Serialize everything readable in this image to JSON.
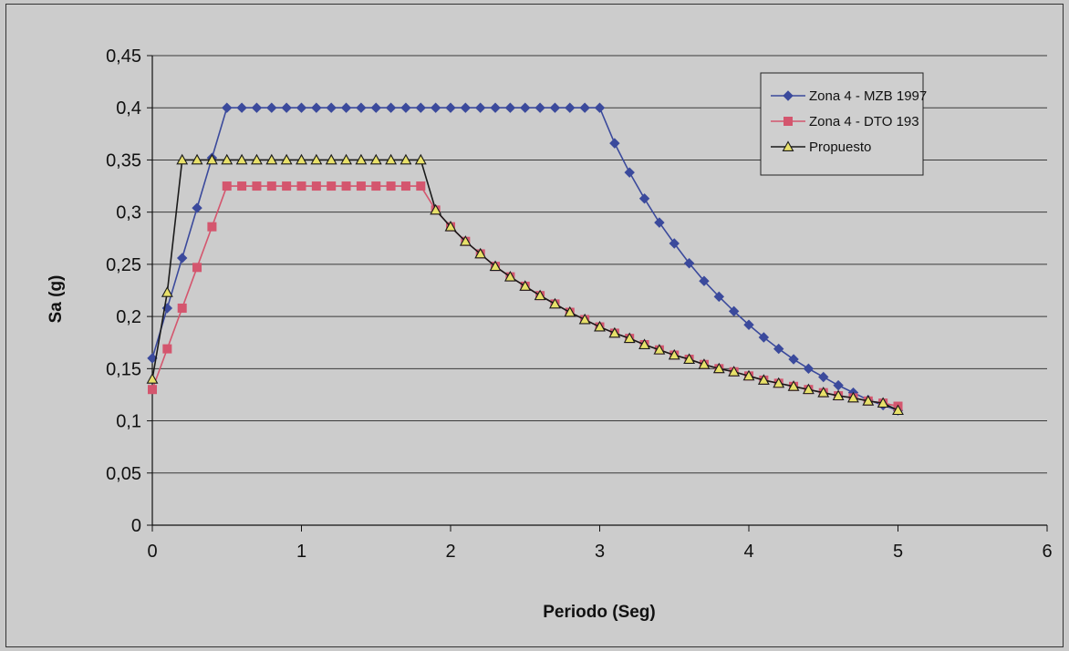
{
  "chart_data": {
    "type": "line",
    "title": "",
    "xlabel": "Periodo (Seg)",
    "ylabel": "Sa (g)",
    "xlim": [
      0,
      6
    ],
    "ylim": [
      0,
      0.45
    ],
    "xticks": [
      0,
      1,
      2,
      3,
      4,
      5,
      6
    ],
    "xtick_labels": [
      "0",
      "1",
      "2",
      "3",
      "4",
      "5",
      "6"
    ],
    "yticks": [
      0,
      0.05,
      0.1,
      0.15,
      0.2,
      0.25,
      0.3,
      0.35,
      0.4,
      0.45
    ],
    "ytick_labels": [
      "0",
      "0,05",
      "0,1",
      "0,15",
      "0,2",
      "0,25",
      "0,3",
      "0,35",
      "0,4",
      "0,45"
    ],
    "grid": "horizontal",
    "legend_position": "top-right",
    "series": [
      {
        "name": "Zona 4 - MZB 1997",
        "color": "#3b4a9c",
        "marker": "diamond",
        "x": [
          0,
          0.1,
          0.2,
          0.3,
          0.4,
          0.5,
          0.6,
          0.7,
          0.8,
          0.9,
          1.0,
          1.1,
          1.2,
          1.3,
          1.4,
          1.5,
          1.6,
          1.7,
          1.8,
          1.9,
          2.0,
          2.1,
          2.2,
          2.3,
          2.4,
          2.5,
          2.6,
          2.7,
          2.8,
          2.9,
          3.0,
          3.1,
          3.2,
          3.3,
          3.4,
          3.5,
          3.6,
          3.7,
          3.8,
          3.9,
          4.0,
          4.1,
          4.2,
          4.3,
          4.4,
          4.5,
          4.6,
          4.7,
          4.8,
          4.9,
          5.0
        ],
        "y": [
          0.16,
          0.208,
          0.256,
          0.304,
          0.352,
          0.4,
          0.4,
          0.4,
          0.4,
          0.4,
          0.4,
          0.4,
          0.4,
          0.4,
          0.4,
          0.4,
          0.4,
          0.4,
          0.4,
          0.4,
          0.4,
          0.4,
          0.4,
          0.4,
          0.4,
          0.4,
          0.4,
          0.4,
          0.4,
          0.4,
          0.4,
          0.366,
          0.338,
          0.313,
          0.29,
          0.27,
          0.251,
          0.234,
          0.219,
          0.205,
          0.192,
          0.18,
          0.169,
          0.159,
          0.15,
          0.142,
          0.134,
          0.127,
          0.12,
          0.115,
          0.11
        ]
      },
      {
        "name": "Zona 4 - DTO 193",
        "color": "#d4566e",
        "marker": "square",
        "x": [
          0,
          0.1,
          0.2,
          0.3,
          0.4,
          0.5,
          0.6,
          0.7,
          0.8,
          0.9,
          1.0,
          1.1,
          1.2,
          1.3,
          1.4,
          1.5,
          1.6,
          1.7,
          1.8,
          1.9,
          2.0,
          2.1,
          2.2,
          2.3,
          2.4,
          2.5,
          2.6,
          2.7,
          2.8,
          2.9,
          3.0,
          3.1,
          3.2,
          3.3,
          3.4,
          3.5,
          3.6,
          3.7,
          3.8,
          3.9,
          4.0,
          4.1,
          4.2,
          4.3,
          4.4,
          4.5,
          4.6,
          4.7,
          4.8,
          4.9,
          5.0
        ],
        "y": [
          0.13,
          0.169,
          0.208,
          0.247,
          0.286,
          0.325,
          0.325,
          0.325,
          0.325,
          0.325,
          0.325,
          0.325,
          0.325,
          0.325,
          0.325,
          0.325,
          0.325,
          0.325,
          0.325,
          0.302,
          0.286,
          0.272,
          0.26,
          0.248,
          0.238,
          0.229,
          0.22,
          0.212,
          0.204,
          0.197,
          0.19,
          0.184,
          0.179,
          0.173,
          0.168,
          0.163,
          0.159,
          0.154,
          0.15,
          0.147,
          0.143,
          0.139,
          0.136,
          0.133,
          0.13,
          0.127,
          0.124,
          0.122,
          0.119,
          0.117,
          0.114
        ]
      },
      {
        "name": "Propuesto",
        "color": "#1a1a1a",
        "marker": "triangle",
        "marker_fill": "#e8e06a",
        "x": [
          0,
          0.1,
          0.2,
          0.3,
          0.4,
          0.5,
          0.6,
          0.7,
          0.8,
          0.9,
          1.0,
          1.1,
          1.2,
          1.3,
          1.4,
          1.5,
          1.6,
          1.7,
          1.8,
          1.9,
          2.0,
          2.1,
          2.2,
          2.3,
          2.4,
          2.5,
          2.6,
          2.7,
          2.8,
          2.9,
          3.0,
          3.1,
          3.2,
          3.3,
          3.4,
          3.5,
          3.6,
          3.7,
          3.8,
          3.9,
          4.0,
          4.1,
          4.2,
          4.3,
          4.4,
          4.5,
          4.6,
          4.7,
          4.8,
          4.9,
          5.0
        ],
        "y": [
          0.14,
          0.223,
          0.35,
          0.35,
          0.35,
          0.35,
          0.35,
          0.35,
          0.35,
          0.35,
          0.35,
          0.35,
          0.35,
          0.35,
          0.35,
          0.35,
          0.35,
          0.35,
          0.35,
          0.302,
          0.286,
          0.272,
          0.26,
          0.248,
          0.238,
          0.229,
          0.22,
          0.212,
          0.204,
          0.197,
          0.19,
          0.184,
          0.179,
          0.173,
          0.168,
          0.163,
          0.159,
          0.154,
          0.15,
          0.147,
          0.143,
          0.139,
          0.136,
          0.133,
          0.13,
          0.127,
          0.124,
          0.122,
          0.119,
          0.117,
          0.11
        ]
      }
    ]
  }
}
